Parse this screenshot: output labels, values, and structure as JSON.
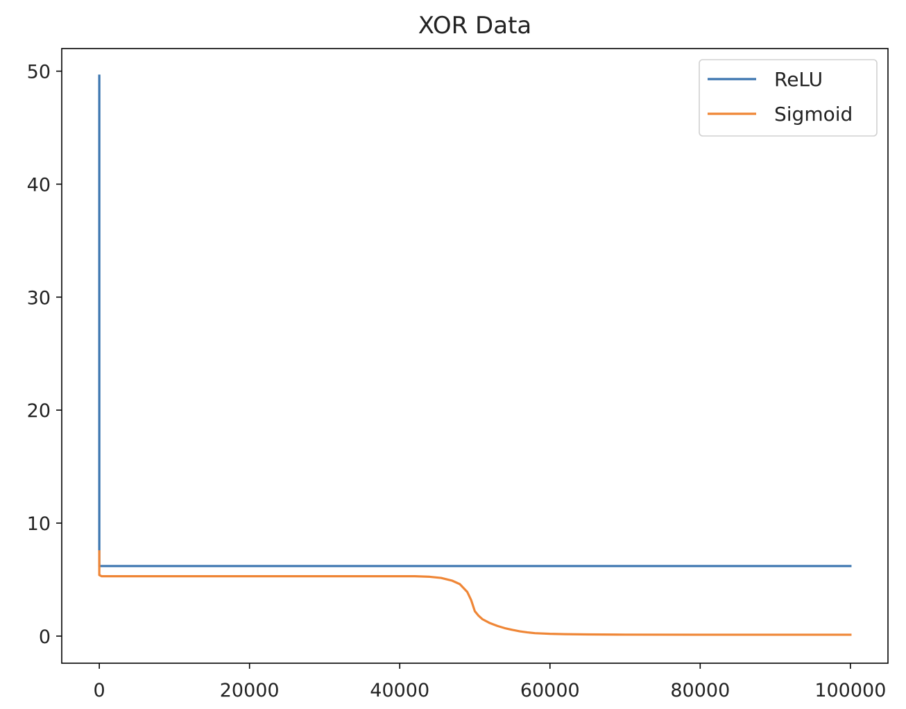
{
  "chart_data": {
    "type": "line",
    "title": "XOR Data",
    "xlabel": "",
    "ylabel": "",
    "xlim": [
      -5000,
      105000
    ],
    "ylim": [
      -2.4,
      52
    ],
    "xticks": [
      0,
      20000,
      40000,
      60000,
      80000,
      100000
    ],
    "xtick_labels": [
      "0",
      "20000",
      "40000",
      "60000",
      "80000",
      "100000"
    ],
    "yticks": [
      0,
      10,
      20,
      30,
      40,
      50
    ],
    "ytick_labels": [
      "0",
      "10",
      "20",
      "30",
      "40",
      "50"
    ],
    "grid": false,
    "legend_position": "top-right",
    "series": [
      {
        "name": "ReLU",
        "color": "#3b75af",
        "x": [
          0,
          0,
          300,
          100000
        ],
        "y": [
          49.6,
          6.2,
          6.2,
          6.2
        ]
      },
      {
        "name": "Sigmoid",
        "color": "#ef8636",
        "x": [
          0,
          0,
          300,
          5000,
          10000,
          20000,
          30000,
          38000,
          42000,
          44000,
          45500,
          47000,
          48000,
          49000,
          49500,
          50000,
          50500,
          51000,
          52000,
          53000,
          54000,
          55000,
          56000,
          57000,
          58000,
          60000,
          62000,
          65000,
          70000,
          80000,
          90000,
          100000
        ],
        "y": [
          7.5,
          5.4,
          5.3,
          5.3,
          5.3,
          5.3,
          5.3,
          5.3,
          5.3,
          5.25,
          5.15,
          4.9,
          4.6,
          3.9,
          3.2,
          2.2,
          1.8,
          1.5,
          1.15,
          0.9,
          0.7,
          0.55,
          0.42,
          0.33,
          0.26,
          0.2,
          0.17,
          0.15,
          0.13,
          0.12,
          0.12,
          0.12
        ]
      }
    ]
  }
}
